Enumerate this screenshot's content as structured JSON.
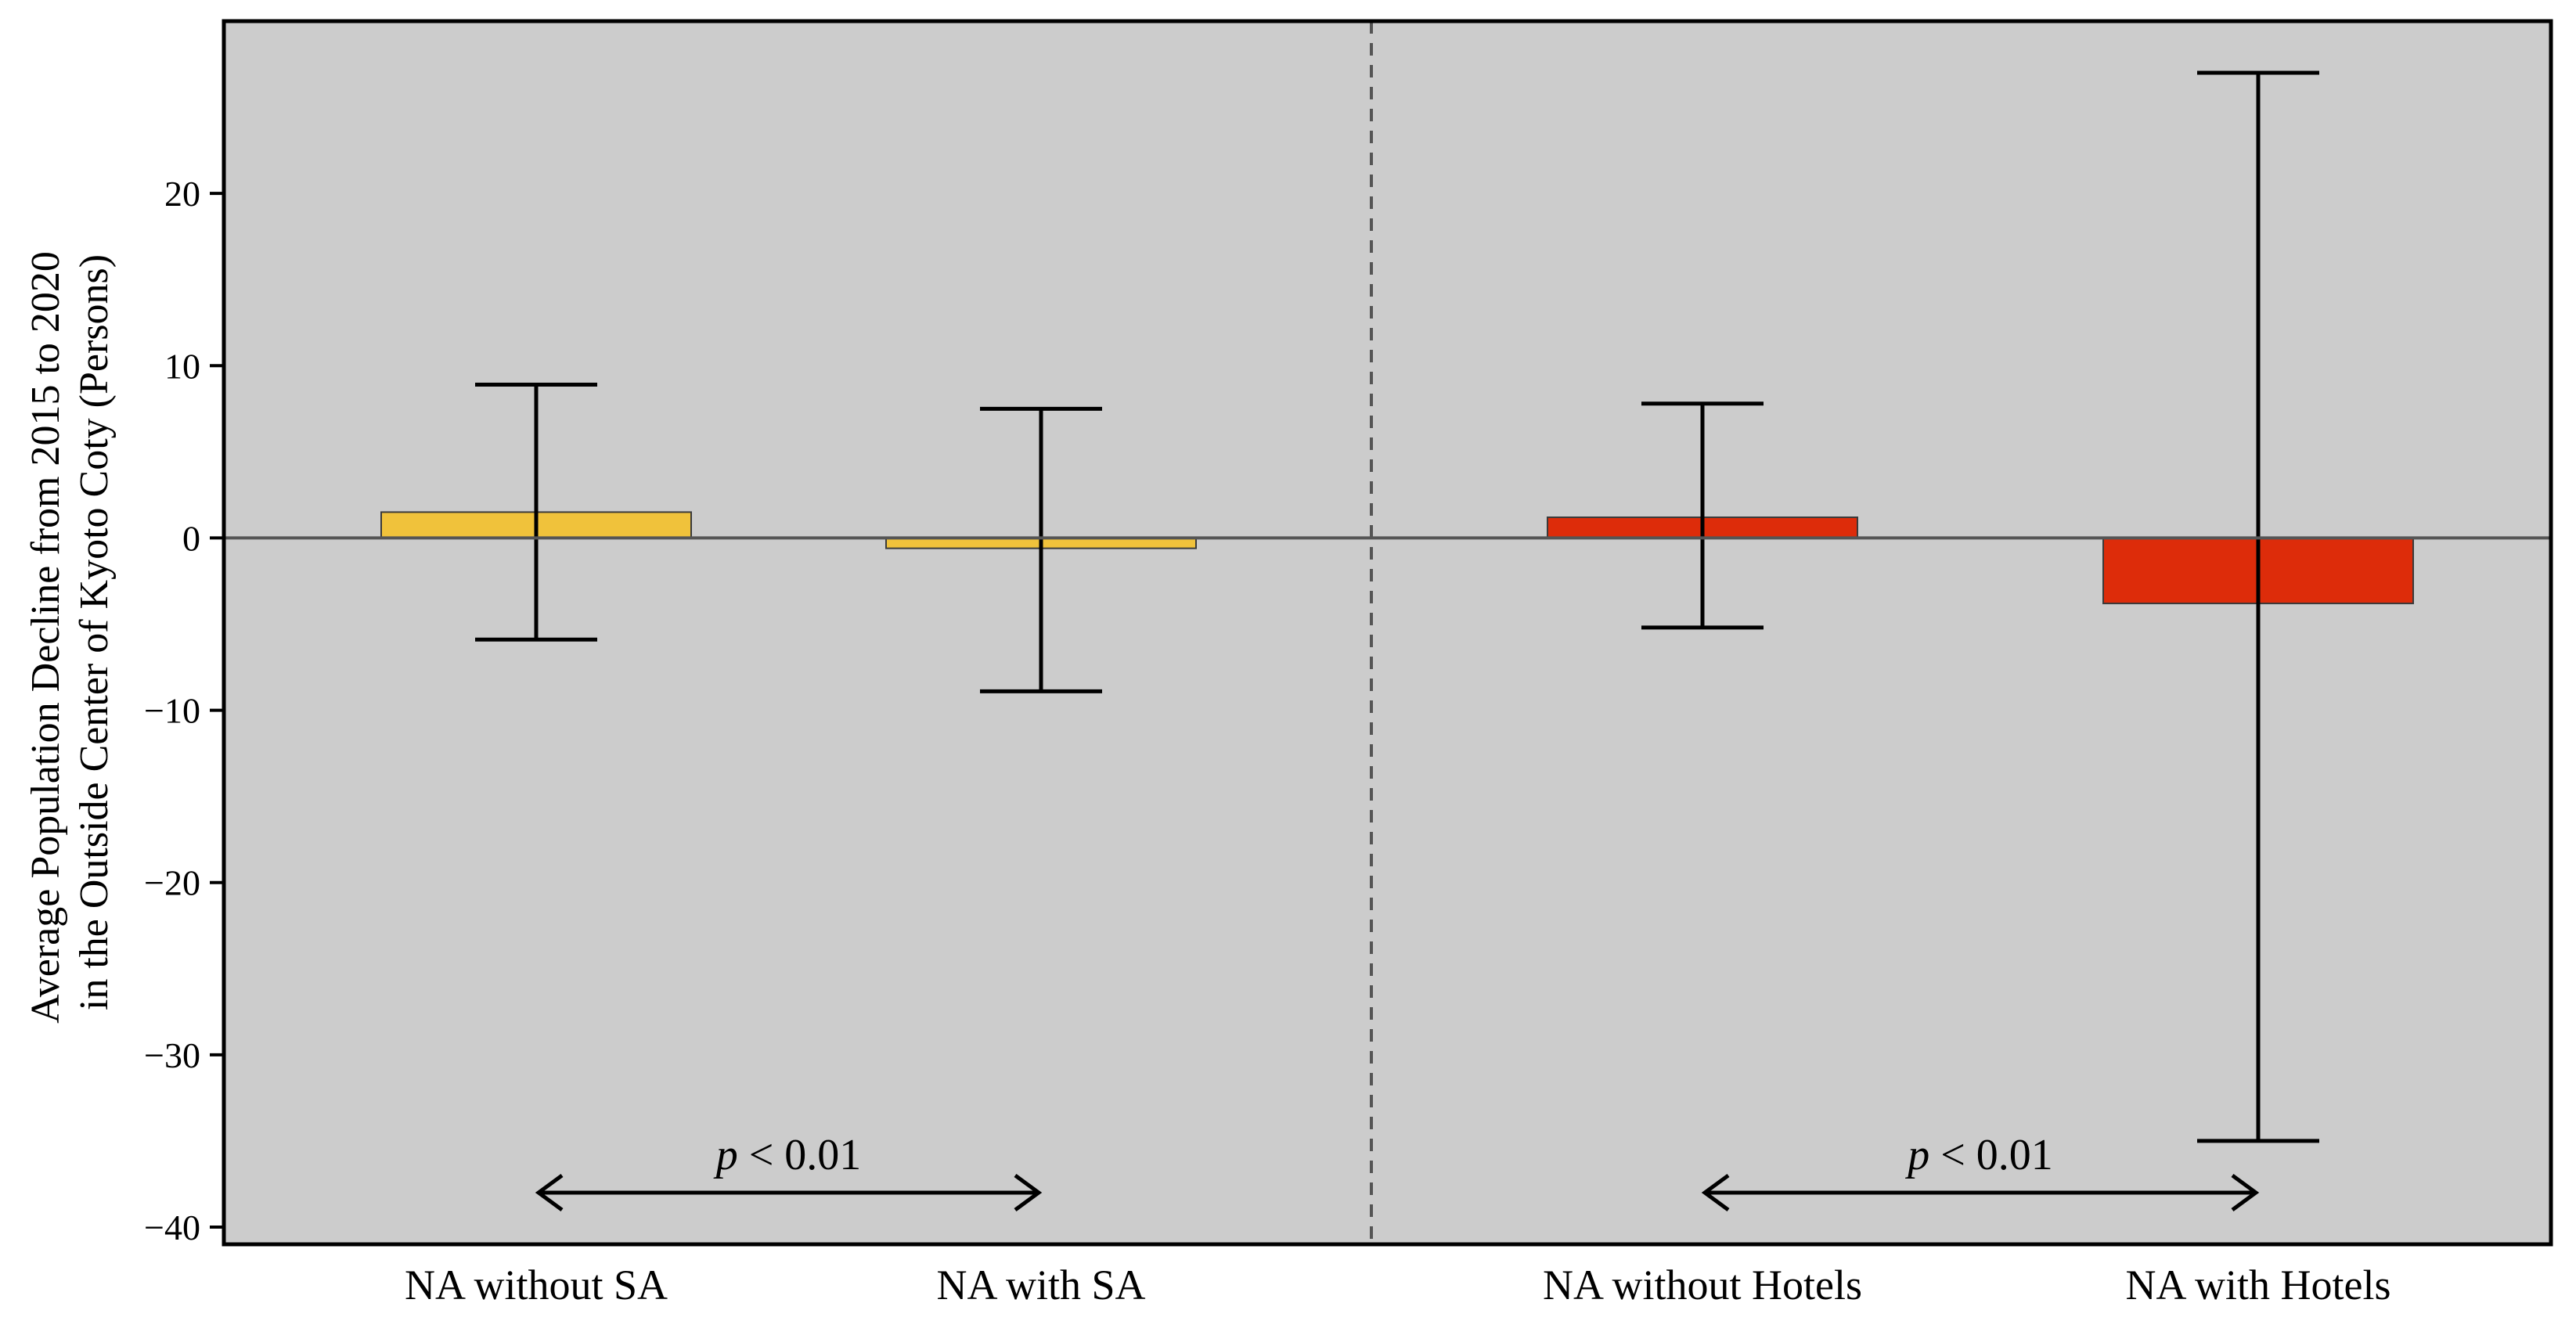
{
  "chart_data": {
    "type": "bar",
    "title": "",
    "ylabel": "Average Population Decline from 2015 to 2020 in the Outside Center of Kyoto Coty (Persons)",
    "ylabel_lines": [
      "Average Population Decline from 2015 to 2020",
      "in the Outside Center of Kyoto Coty (Persons)"
    ],
    "xlabel": "",
    "ylim": [
      -41,
      30
    ],
    "yticks": [
      20,
      10,
      0,
      -10,
      -20,
      -30,
      -40
    ],
    "ytick_labels": [
      "20",
      "10",
      "0",
      "−10",
      "−20",
      "−30",
      "−40"
    ],
    "grid": false,
    "categories": [
      "NA without SA",
      "NA with SA",
      "NA without Hotels",
      "NA with Hotels"
    ],
    "values": [
      1.5,
      -0.6,
      1.2,
      -3.8
    ],
    "error_low": [
      -5.9,
      -8.9,
      -5.2,
      -35
    ],
    "error_high": [
      8.9,
      7.5,
      7.8,
      27
    ],
    "colors": [
      "#f0c23b",
      "#f0c23b",
      "#dd2c0a",
      "#dd2c0a"
    ],
    "background_color": "#cccccc",
    "annotations": [
      {
        "text_italic": "p",
        "text_rest": " < 0.01",
        "between": [
          "NA without SA",
          "NA with SA"
        ],
        "y": -38
      },
      {
        "text_italic": "p",
        "text_rest": " < 0.01",
        "between": [
          "NA without Hotels",
          "NA with Hotels"
        ],
        "y": -38
      }
    ]
  }
}
